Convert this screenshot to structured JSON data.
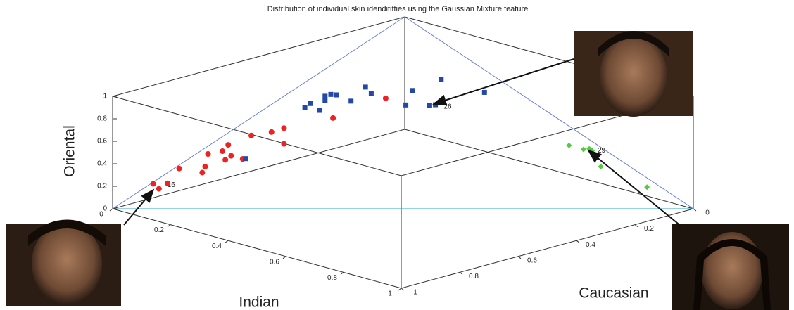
{
  "chart_data": {
    "type": "scatter3d",
    "title": "Distribution of individual skin idendititties using the Gaussian Mixture feature",
    "xlabel": "Indian",
    "ylabel": "Caucasian",
    "zlabel": "Oriental",
    "xlim": [
      0,
      1
    ],
    "ylim": [
      0,
      1
    ],
    "zlim": [
      0,
      1
    ],
    "xticks": [
      0,
      0.2,
      0.4,
      0.6,
      0.8,
      1
    ],
    "yticks": [
      0,
      0.2,
      0.4,
      0.6,
      0.8,
      1
    ],
    "zticks": [
      0,
      0.2,
      0.4,
      0.6,
      0.8,
      1
    ],
    "series": [
      {
        "color": "#ee2222",
        "marker": "circle",
        "x": [
          0.09,
          0.11,
          0.14,
          0.18,
          0.26,
          0.27,
          0.28,
          0.33,
          0.35,
          0.34,
          0.36,
          0.4,
          0.43,
          0.5,
          0.29,
          0.29,
          0.46,
          0.44
        ],
        "y": [
          0.95,
          0.95,
          0.95,
          0.95,
          0.95,
          0.95,
          0.95,
          0.95,
          0.95,
          0.95,
          0.95,
          0.95,
          0.95,
          0.95,
          0.7,
          0.7,
          0.7,
          0.5
        ],
        "z": [
          0.25,
          0.22,
          0.29,
          0.45,
          0.47,
          0.53,
          0.65,
          0.71,
          0.78,
          0.64,
          0.69,
          0.69,
          0.92,
          1.0,
          0.71,
          0.57,
          0.92,
          0.94
        ],
        "point_labels": [
          "16",
          null,
          null,
          null,
          null,
          null,
          null,
          null,
          null,
          null,
          null,
          null,
          null,
          null,
          null,
          null,
          null,
          null
        ]
      },
      {
        "color": "#2448a8",
        "marker": "square",
        "x": [
          0.41,
          0.16,
          0.18,
          0.21,
          0.23,
          0.23,
          0.25,
          0.27,
          0.32,
          0.37,
          0.39,
          0.51,
          0.33,
          0.39,
          0.41,
          0.43,
          0.58
        ],
        "y": [
          0.95,
          0.5,
          0.5,
          0.5,
          0.5,
          0.5,
          0.5,
          0.5,
          0.5,
          0.5,
          0.5,
          0.5,
          0.3,
          0.3,
          0.3,
          0.3,
          0.3
        ],
        "z": [
          0.7,
          0.66,
          0.71,
          0.67,
          0.77,
          0.81,
          0.84,
          0.85,
          0.83,
          0.99,
          0.95,
          0.93,
          0.79,
          0.7,
          0.72,
          0.96,
          0.95
        ],
        "point_labels": [
          null,
          null,
          null,
          null,
          null,
          null,
          null,
          null,
          null,
          null,
          null,
          null,
          null,
          "26",
          null,
          null,
          null
        ]
      },
      {
        "color": "#55c844",
        "marker": "diamond",
        "x": [
          0.62,
          0.67,
          0.69,
          0.7,
          0.73,
          0.89
        ],
        "y": [
          0.05,
          0.05,
          0.05,
          0.05,
          0.05,
          0.05
        ],
        "z": [
          0.33,
          0.33,
          0.35,
          0.34,
          0.22,
          0.15
        ],
        "point_labels": [
          null,
          "29",
          null,
          null,
          null,
          null
        ]
      }
    ]
  }
}
